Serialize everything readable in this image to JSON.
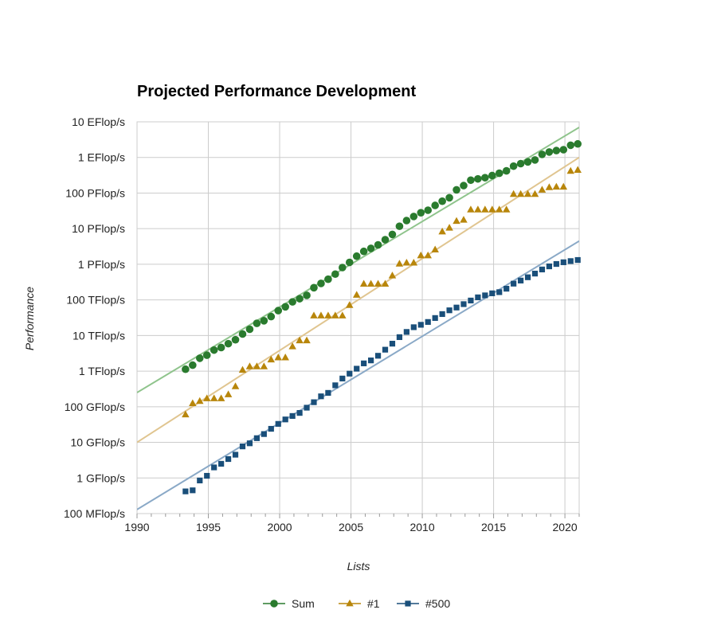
{
  "chart_data": {
    "type": "scatter",
    "title": "Projected Performance Development",
    "xlabel": "Lists",
    "ylabel": "Performance",
    "xlim": [
      1990,
      2021
    ],
    "ylim": [
      100000000.0,
      1e+19
    ],
    "yscale": "log",
    "grid": true,
    "legend_position": "bottom",
    "x_ticks": [
      1990,
      1995,
      2000,
      2005,
      2010,
      2015,
      2020
    ],
    "y_ticks": [
      {
        "value": 100000000.0,
        "label": "100 MFlop/s"
      },
      {
        "value": 1000000000.0,
        "label": "1 GFlop/s"
      },
      {
        "value": 10000000000.0,
        "label": "10 GFlop/s"
      },
      {
        "value": 100000000000.0,
        "label": "100 GFlop/s"
      },
      {
        "value": 1000000000000.0,
        "label": "1 TFlop/s"
      },
      {
        "value": 10000000000000.0,
        "label": "10 TFlop/s"
      },
      {
        "value": 100000000000000.0,
        "label": "100 TFlop/s"
      },
      {
        "value": 1000000000000000.0,
        "label": "1 PFlop/s"
      },
      {
        "value": 1e+16,
        "label": "10 PFlop/s"
      },
      {
        "value": 1e+17,
        "label": "100 PFlop/s"
      },
      {
        "value": 1e+18,
        "label": "1 EFlop/s"
      },
      {
        "value": 1e+19,
        "label": "10 EFlop/s"
      }
    ],
    "series": [
      {
        "name": "Sum",
        "marker": "circle",
        "color": "#2a7b2e",
        "trend_color": "#8fc48c",
        "trend": [
          [
            1990,
            250000000000.0
          ],
          [
            2021,
            7e+18
          ]
        ],
        "values": [
          [
            1993.4,
            1130000000000.0
          ],
          [
            1993.9,
            1470000000000.0
          ],
          [
            1994.4,
            2300000000000.0
          ],
          [
            1994.9,
            2800000000000.0
          ],
          [
            1995.4,
            3900000000000.0
          ],
          [
            1995.9,
            4600000000000.0
          ],
          [
            1996.4,
            5900000000000.0
          ],
          [
            1996.9,
            7600000000000.0
          ],
          [
            1997.4,
            11000000000000.0
          ],
          [
            1997.9,
            15000000000000.0
          ],
          [
            1998.4,
            22000000000000.0
          ],
          [
            1998.9,
            26000000000000.0
          ],
          [
            1999.4,
            34000000000000.0
          ],
          [
            1999.9,
            50000000000000.0
          ],
          [
            2000.4,
            64000000000000.0
          ],
          [
            2000.9,
            88000000000000.0
          ],
          [
            2001.4,
            108000000000000.0
          ],
          [
            2001.9,
            134000000000000.0
          ],
          [
            2002.4,
            220000000000000.0
          ],
          [
            2002.9,
            290000000000000.0
          ],
          [
            2003.4,
            380000000000000.0
          ],
          [
            2003.9,
            530000000000000.0
          ],
          [
            2004.4,
            810000000000000.0
          ],
          [
            2004.9,
            1130000000000000.0
          ],
          [
            2005.4,
            1690000000000000.0
          ],
          [
            2005.9,
            2300000000000000.0
          ],
          [
            2006.4,
            2800000000000000.0
          ],
          [
            2006.9,
            3500000000000000.0
          ],
          [
            2007.4,
            4900000000000000.0
          ],
          [
            2007.9,
            6900000000000000.0
          ],
          [
            2008.4,
            1.17e+16
          ],
          [
            2008.9,
            1.69e+16
          ],
          [
            2009.4,
            2.2e+16
          ],
          [
            2009.9,
            2.8e+16
          ],
          [
            2010.4,
            3.3e+16
          ],
          [
            2010.9,
            4.5e+16
          ],
          [
            2011.4,
            5.9e+16
          ],
          [
            2011.9,
            7.4e+16
          ],
          [
            2012.4,
            1.23e+17
          ],
          [
            2012.9,
            1.62e+17
          ],
          [
            2013.4,
            2.3e+17
          ],
          [
            2013.9,
            2.5e+17
          ],
          [
            2014.4,
            2.7e+17
          ],
          [
            2014.9,
            3.1e+17
          ],
          [
            2015.4,
            3.6e+17
          ],
          [
            2015.9,
            4.2e+17
          ],
          [
            2016.4,
            5.7e+17
          ],
          [
            2016.9,
            6.7e+17
          ],
          [
            2017.4,
            7.5e+17
          ],
          [
            2017.9,
            8.5e+17
          ],
          [
            2018.4,
            1.22e+18
          ],
          [
            2018.9,
            1.42e+18
          ],
          [
            2019.4,
            1.56e+18
          ],
          [
            2019.9,
            1.65e+18
          ],
          [
            2020.4,
            2.2e+18
          ],
          [
            2020.9,
            2.4e+18
          ]
        ]
      },
      {
        "name": "#1",
        "marker": "triangle",
        "color": "#b8860b",
        "trend_color": "#e0c590",
        "trend": [
          [
            1990,
            10000000000.0
          ],
          [
            2021,
            1e+18
          ]
        ],
        "values": [
          [
            1993.4,
            60000000000.0
          ],
          [
            1993.9,
            124000000000.0
          ],
          [
            1994.4,
            143000000000.0
          ],
          [
            1994.9,
            170000000000.0
          ],
          [
            1995.4,
            170000000000.0
          ],
          [
            1995.9,
            170000000000.0
          ],
          [
            1996.4,
            220000000000.0
          ],
          [
            1996.9,
            370000000000.0
          ],
          [
            1997.4,
            1070000000000.0
          ],
          [
            1997.9,
            1340000000000.0
          ],
          [
            1998.4,
            1340000000000.0
          ],
          [
            1998.9,
            1340000000000.0
          ],
          [
            1999.4,
            2100000000000.0
          ],
          [
            1999.9,
            2400000000000.0
          ],
          [
            2000.4,
            2400000000000.0
          ],
          [
            2000.9,
            4900000000000.0
          ],
          [
            2001.4,
            7200000000000.0
          ],
          [
            2001.9,
            7200000000000.0
          ],
          [
            2002.4,
            36000000000000.0
          ],
          [
            2002.9,
            36000000000000.0
          ],
          [
            2003.4,
            36000000000000.0
          ],
          [
            2003.9,
            36000000000000.0
          ],
          [
            2004.4,
            36000000000000.0
          ],
          [
            2004.9,
            71000000000000.0
          ],
          [
            2005.4,
            137000000000000.0
          ],
          [
            2005.9,
            280000000000000.0
          ],
          [
            2006.4,
            280000000000000.0
          ],
          [
            2006.9,
            280000000000000.0
          ],
          [
            2007.4,
            280000000000000.0
          ],
          [
            2007.9,
            480000000000000.0
          ],
          [
            2008.4,
            1030000000000000.0
          ],
          [
            2008.9,
            1100000000000000.0
          ],
          [
            2009.4,
            1100000000000000.0
          ],
          [
            2009.9,
            1760000000000000.0
          ],
          [
            2010.4,
            1760000000000000.0
          ],
          [
            2010.9,
            2570000000000000.0
          ],
          [
            2011.4,
            8200000000000000.0
          ],
          [
            2011.9,
            1.05e+16
          ],
          [
            2012.4,
            1.63e+16
          ],
          [
            2012.9,
            1.76e+16
          ],
          [
            2013.4,
            3.4e+16
          ],
          [
            2013.9,
            3.4e+16
          ],
          [
            2014.4,
            3.4e+16
          ],
          [
            2014.9,
            3.4e+16
          ],
          [
            2015.4,
            3.4e+16
          ],
          [
            2015.9,
            3.4e+16
          ],
          [
            2016.4,
            9.3e+16
          ],
          [
            2016.9,
            9.3e+16
          ],
          [
            2017.4,
            9.3e+16
          ],
          [
            2017.9,
            9.3e+16
          ],
          [
            2018.4,
            1.23e+17
          ],
          [
            2018.9,
            1.44e+17
          ],
          [
            2019.4,
            1.49e+17
          ],
          [
            2019.9,
            1.49e+17
          ],
          [
            2020.4,
            4.15e+17
          ],
          [
            2020.9,
            4.42e+17
          ]
        ]
      },
      {
        "name": "#500",
        "marker": "square",
        "color": "#1a4f7a",
        "trend_color": "#8aa9c7",
        "trend": [
          [
            1990,
            130000000.0
          ],
          [
            2021,
            4500000000000000.0
          ]
        ],
        "values": [
          [
            1993.4,
            420000000.0
          ],
          [
            1993.9,
            450000000.0
          ],
          [
            1994.4,
            850000000.0
          ],
          [
            1994.9,
            1150000000.0
          ],
          [
            1995.4,
            1980000000.0
          ],
          [
            1995.9,
            2500000000.0
          ],
          [
            1996.4,
            3400000000.0
          ],
          [
            1996.9,
            4500000000.0
          ],
          [
            1997.4,
            7700000000.0
          ],
          [
            1997.9,
            9400000000.0
          ],
          [
            1998.4,
            13100000000.0
          ],
          [
            1998.9,
            17100000000.0
          ],
          [
            1999.4,
            24000000000.0
          ],
          [
            1999.9,
            33000000000.0
          ],
          [
            2000.4,
            44000000000.0
          ],
          [
            2000.9,
            55000000000.0
          ],
          [
            2001.4,
            67000000000.0
          ],
          [
            2001.9,
            94000000000.0
          ],
          [
            2002.4,
            134000000000.0
          ],
          [
            2002.9,
            196000000000.0
          ],
          [
            2003.4,
            245000000000.0
          ],
          [
            2003.9,
            400000000000.0
          ],
          [
            2004.4,
            620000000000.0
          ],
          [
            2004.9,
            850000000000.0
          ],
          [
            2005.4,
            1170000000000.0
          ],
          [
            2005.9,
            1650000000000.0
          ],
          [
            2006.4,
            2000000000000.0
          ],
          [
            2006.9,
            2700000000000.0
          ],
          [
            2007.4,
            4000000000000.0
          ],
          [
            2007.9,
            5900000000000.0
          ],
          [
            2008.4,
            9000000000000.0
          ],
          [
            2008.9,
            12600000000000.0
          ],
          [
            2009.4,
            17100000000000.0
          ],
          [
            2009.9,
            20000000000000.0
          ],
          [
            2010.4,
            24000000000000.0
          ],
          [
            2010.9,
            31000000000000.0
          ],
          [
            2011.4,
            40000000000000.0
          ],
          [
            2011.9,
            51000000000000.0
          ],
          [
            2012.4,
            61000000000000.0
          ],
          [
            2012.9,
            76000000000000.0
          ],
          [
            2013.4,
            96000000000000.0
          ],
          [
            2013.9,
            118000000000000.0
          ],
          [
            2014.4,
            134000000000000.0
          ],
          [
            2014.9,
            153000000000000.0
          ],
          [
            2015.4,
            165000000000000.0
          ],
          [
            2015.9,
            206000000000000.0
          ],
          [
            2016.4,
            286000000000000.0
          ],
          [
            2016.9,
            349000000000000.0
          ],
          [
            2017.4,
            432000000000000.0
          ],
          [
            2017.9,
            548000000000000.0
          ],
          [
            2018.4,
            715000000000000.0
          ],
          [
            2018.9,
            874000000000000.0
          ],
          [
            2019.4,
            1020000000000000.0
          ],
          [
            2019.9,
            1140000000000000.0
          ],
          [
            2020.4,
            1230000000000000.0
          ],
          [
            2020.9,
            1320000000000000.0
          ]
        ]
      }
    ]
  }
}
